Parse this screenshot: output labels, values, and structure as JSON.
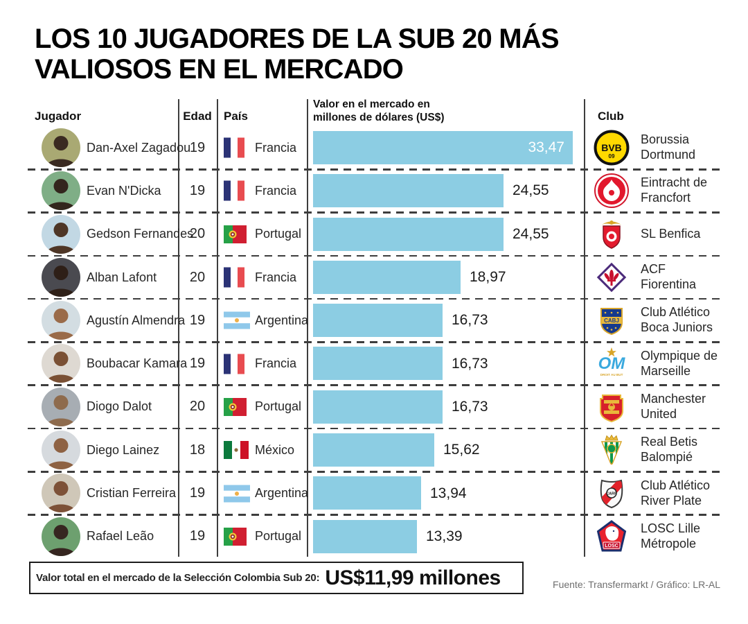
{
  "title": {
    "line1": "LOS 10 JUGADORES DE LA SUB 20 MÁS",
    "line2": "VALIOSOS EN EL MERCADO"
  },
  "columns": {
    "jugador": "Jugador",
    "edad": "Edad",
    "pais": "País",
    "valor_line1": "Valor en el mercado en",
    "valor_line2": "millones de dólares (US$)",
    "club": "Club"
  },
  "colors": {
    "bar": "#8CCDE3",
    "dashed_line": "#3d3d3d",
    "divider": "#3d3d3d",
    "source_text": "#6e6e6e"
  },
  "players": [
    {
      "name": "Dan-Axel Zagadou",
      "age": "19",
      "country": "Francia",
      "flag": "france",
      "value": 33.47,
      "value_label": "33,47",
      "value_inside": true,
      "club": "Borussia Dortmund",
      "logo": "borussia-dortmund",
      "avatar_bg": "#a9a973",
      "avatar_fg": "#3a2a21"
    },
    {
      "name": "Evan N'Dicka",
      "age": "19",
      "country": "Francia",
      "flag": "france",
      "value": 24.55,
      "value_label": "24,55",
      "value_inside": false,
      "club": "Eintracht de Francfort",
      "logo": "eintracht-francfort",
      "avatar_bg": "#7fae86",
      "avatar_fg": "#33261d"
    },
    {
      "name": "Gedson Fernandes",
      "age": "20",
      "country": "Portugal",
      "flag": "portugal",
      "value": 24.55,
      "value_label": "24,55",
      "value_inside": false,
      "club": "SL Benfica",
      "logo": "sl-benfica",
      "avatar_bg": "#c2d8e4",
      "avatar_fg": "#4e3626"
    },
    {
      "name": "Alban Lafont",
      "age": "20",
      "country": "Francia",
      "flag": "france",
      "value": 18.97,
      "value_label": "18,97",
      "value_inside": false,
      "club": "ACF Fiorentina",
      "logo": "acf-fiorentina",
      "avatar_bg": "#4a4a50",
      "avatar_fg": "#2e1f17"
    },
    {
      "name": "Agustín Almendra",
      "age": "19",
      "country": "Argentina",
      "flag": "argentina",
      "value": 16.73,
      "value_label": "16,73",
      "value_inside": false,
      "club": "Club Atlético Boca Juniors",
      "logo": "boca-juniors",
      "avatar_bg": "#d3dde2",
      "avatar_fg": "#9a6b49"
    },
    {
      "name": "Boubacar Kamara",
      "age": "19",
      "country": "Francia",
      "flag": "france",
      "value": 16.73,
      "value_label": "16,73",
      "value_inside": false,
      "club": "Olympique de Marseille",
      "logo": "olympique-marseille",
      "avatar_bg": "#ded9d2",
      "avatar_fg": "#7a5034"
    },
    {
      "name": "Diogo Dalot",
      "age": "20",
      "country": "Portugal",
      "flag": "portugal",
      "value": 16.73,
      "value_label": "16,73",
      "value_inside": false,
      "club": "Manchester United",
      "logo": "manchester-united",
      "avatar_bg": "#a7adb3",
      "avatar_fg": "#8e6b4d"
    },
    {
      "name": "Diego Lainez",
      "age": "18",
      "country": "México",
      "flag": "mexico",
      "value": 15.62,
      "value_label": "15,62",
      "value_inside": false,
      "club": "Real Betis Balompié",
      "logo": "real-betis",
      "avatar_bg": "#d6dade",
      "avatar_fg": "#8e6243"
    },
    {
      "name": "Cristian Ferreira",
      "age": "19",
      "country": "Argentina",
      "flag": "argentina",
      "value": 13.94,
      "value_label": "13,94",
      "value_inside": false,
      "club": "Club Atlético River Plate",
      "logo": "river-plate",
      "avatar_bg": "#cfc7b8",
      "avatar_fg": "#7d5137"
    },
    {
      "name": "Rafael Leão",
      "age": "19",
      "country": "Portugal",
      "flag": "portugal",
      "value": 13.39,
      "value_label": "13,39",
      "value_inside": false,
      "club": "LOSC Lille Métropole",
      "logo": "losc-lille",
      "avatar_bg": "#6da06f",
      "avatar_fg": "#362620"
    }
  ],
  "footer": {
    "total_label": "Valor total en el mercado de la Selección Colombia Sub 20:",
    "total_value": "US$11,99 millones",
    "source": "Fuente: Transfermarkt / Gráfico: LR-AL"
  },
  "chart_data": {
    "type": "bar",
    "orientation": "horizontal",
    "title": "LOS 10 JUGADORES DE LA SUB 20 MÁS VALIOSOS EN EL MERCADO",
    "categories": [
      "Dan-Axel Zagadou",
      "Evan N'Dicka",
      "Gedson Fernandes",
      "Alban Lafont",
      "Agustín Almendra",
      "Boubacar Kamara",
      "Diogo Dalot",
      "Diego Lainez",
      "Cristian Ferreira",
      "Rafael Leão"
    ],
    "values": [
      33.47,
      24.55,
      24.55,
      18.97,
      16.73,
      16.73,
      16.73,
      15.62,
      13.94,
      13.39
    ],
    "value_labels": [
      "33,47",
      "24,55",
      "24,55",
      "18,97",
      "16,73",
      "16,73",
      "16,73",
      "15,62",
      "13,94",
      "13,39"
    ],
    "xlabel": "Valor en el mercado en millones de dólares (US$)",
    "xlim": [
      0,
      33.47
    ],
    "bar_color": "#8CCDE3",
    "grid": false,
    "legend": false
  }
}
